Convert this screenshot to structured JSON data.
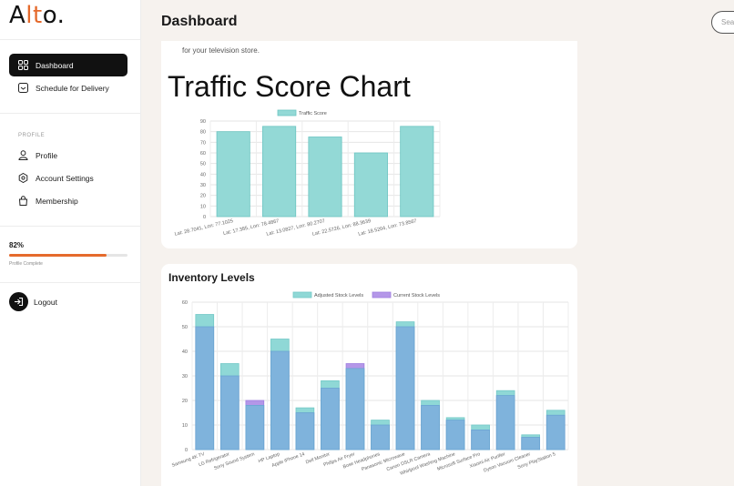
{
  "brand": {
    "logo_main": "A",
    "logo_accent": "lt",
    "logo_end": "o."
  },
  "nav": {
    "dashboard": "Dashboard",
    "schedule": "Schedule for Delivery",
    "profile_section": "PROFILE",
    "profile": "Profile",
    "account_settings": "Account Settings",
    "membership": "Membership",
    "logout": "Logout"
  },
  "profile_progress": {
    "value_text": "82%",
    "fraction": 0.82,
    "caption": "Profile Complete"
  },
  "header": {
    "title": "Dashboard",
    "search_placeholder": "Sea"
  },
  "traffic": {
    "description": "for your television store.",
    "heading": "Traffic Score Chart"
  },
  "inventory": {
    "heading": "Inventory Levels"
  },
  "colors": {
    "accent": "#e56a2c",
    "teal": "#8fd8d6",
    "blue": "#7fb3dc",
    "purple": "#b497e8"
  },
  "chart_data": [
    {
      "type": "bar",
      "categories": [
        "Lat: 28.7041, Lon: 77.1025",
        "Lat: 17.385, Lon: 78.4867",
        "Lat: 13.0827, Lon: 80.2707",
        "Lat: 22.5726, Lon: 88.3639",
        "Lat: 18.5204, Lon: 73.8567"
      ],
      "series": [
        {
          "name": "Traffic Score",
          "values": [
            80,
            85,
            75,
            60,
            85
          ]
        }
      ],
      "ylim": [
        0,
        90
      ],
      "yticks": [
        0,
        10,
        20,
        30,
        40,
        50,
        60,
        70,
        80,
        90
      ],
      "legend": "top",
      "grid": true
    },
    {
      "type": "bar",
      "categories": [
        "Samsung 4K TV",
        "LG Refrigerator",
        "Sony Sound System",
        "HP Laptop",
        "Apple iPhone 14",
        "Dell Monitor",
        "Philips Air Fryer",
        "Bose Headphones",
        "Panasonic Microwave",
        "Canon DSLR Camera",
        "Whirlpool Washing Machine",
        "Microsoft Surface Pro",
        "Xiaomi Air Purifier",
        "Dyson Vacuum Cleaner",
        "Sony PlayStation 5"
      ],
      "series": [
        {
          "name": "Adjusted Stock Levels",
          "values": [
            55,
            35,
            18,
            45,
            17,
            28,
            33,
            12,
            52,
            20,
            13,
            10,
            24,
            6,
            16
          ]
        },
        {
          "name": "Current Stock Levels",
          "values": [
            50,
            30,
            20,
            40,
            15,
            25,
            35,
            10,
            50,
            18,
            12,
            8,
            22,
            5,
            14
          ]
        }
      ],
      "ylim": [
        0,
        60
      ],
      "yticks": [
        0,
        10,
        20,
        30,
        40,
        50,
        60
      ],
      "legend": "top",
      "grid": true
    }
  ]
}
